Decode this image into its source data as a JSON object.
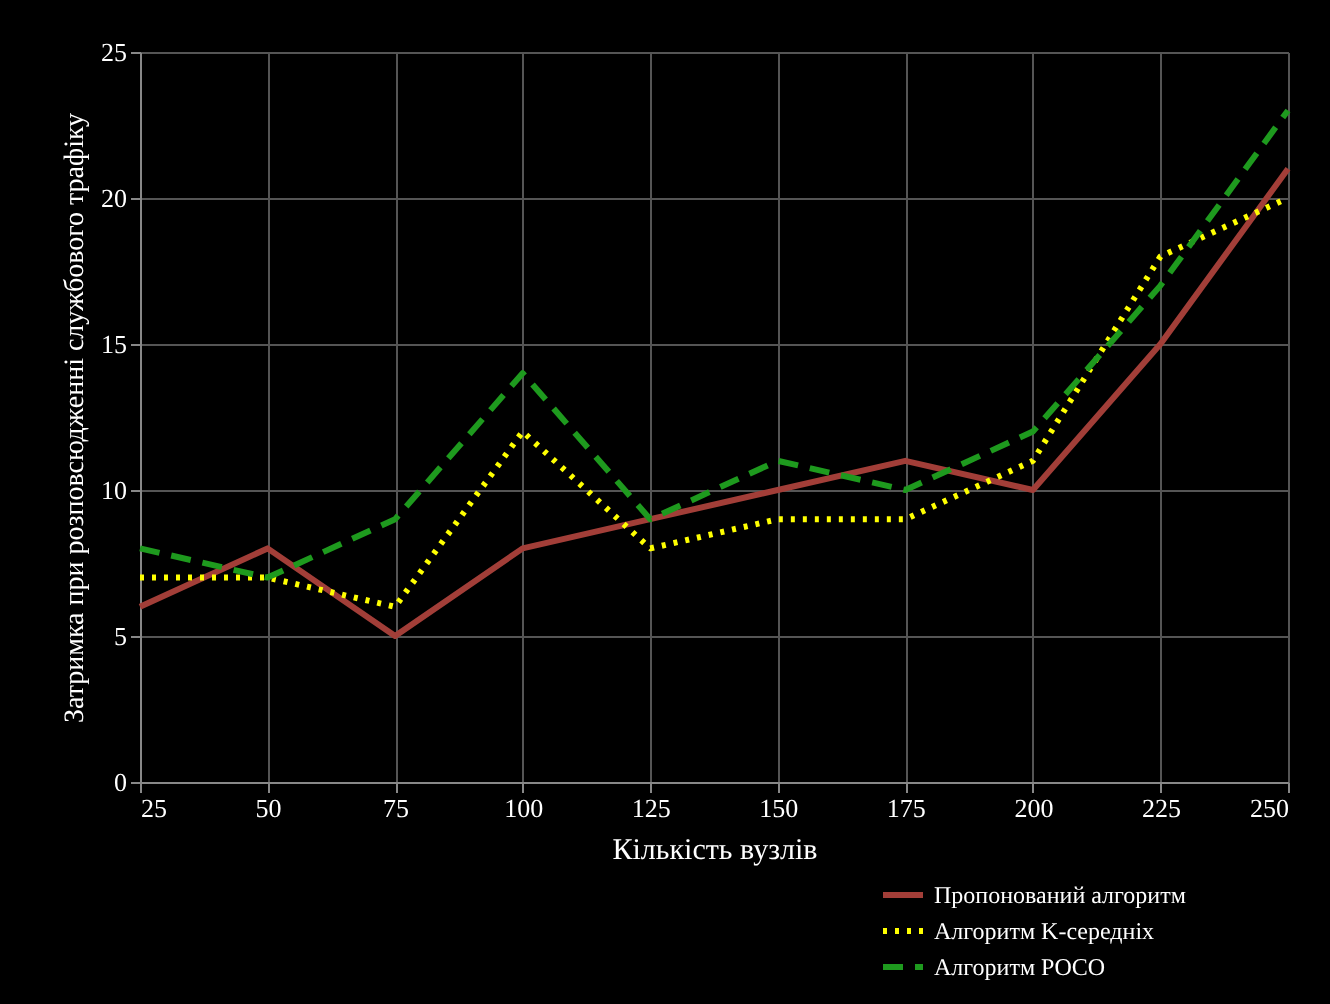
{
  "chart_data": {
    "type": "line",
    "xlabel": "Кількість вузлів",
    "ylabel": "Затримка при розповсюдженні службового трафіку",
    "x": [
      25,
      50,
      75,
      100,
      125,
      150,
      175,
      200,
      225,
      250
    ],
    "series": [
      {
        "name": "Пропонований алгоритм",
        "color": "#a23e38",
        "line_style": "solid",
        "values": [
          6,
          8,
          5,
          8,
          9,
          10,
          11,
          10,
          15,
          21
        ]
      },
      {
        "name": "Алгоритм K-середніх",
        "color": "#ffff00",
        "line_style": "dotted",
        "values": [
          7,
          7,
          6,
          12,
          8,
          9,
          9,
          11,
          18,
          20
        ]
      },
      {
        "name": "Алгоритм POCO",
        "color": "#1e9a1e",
        "line_style": "dashed",
        "values": [
          8,
          7,
          9,
          14,
          9,
          11,
          10,
          12,
          17,
          23
        ]
      }
    ],
    "xlim": [
      25,
      250
    ],
    "xticks": [
      25,
      50,
      75,
      100,
      125,
      150,
      175,
      200,
      225,
      250
    ],
    "ylim": [
      0,
      25
    ],
    "yticks": [
      0,
      5,
      10,
      15,
      20,
      25
    ],
    "grid": true,
    "legend": "bottom right"
  }
}
